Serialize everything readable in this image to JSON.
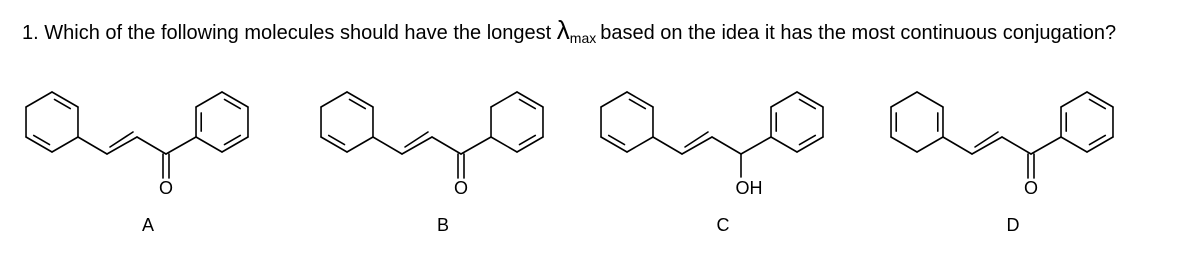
{
  "question": {
    "number": "1.",
    "text_before": "Which of the following molecules should have the longest",
    "symbol": "λ",
    "subscript": "max",
    "text_after": "based on the idea it has the most continuous conjugation?"
  },
  "molecules": [
    {
      "label": "A",
      "substituent": "O"
    },
    {
      "label": "B",
      "substituent": "O"
    },
    {
      "label": "C",
      "substituent": "OH"
    },
    {
      "label": "D",
      "substituent": "O"
    }
  ]
}
